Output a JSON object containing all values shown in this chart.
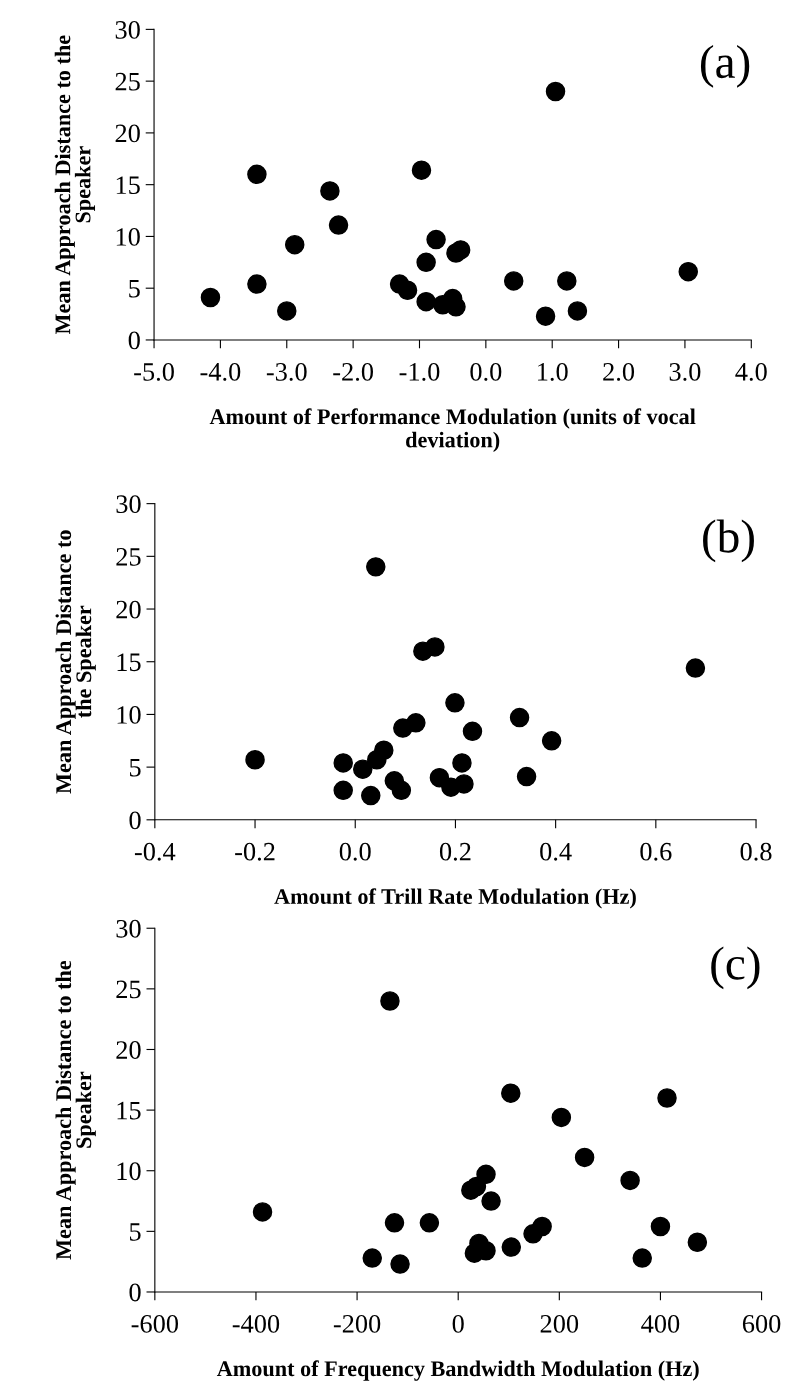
{
  "chart_data": [
    {
      "type": "scatter",
      "xlabel": "Amount of Performance Modulation (units of vocal\ndeviation)",
      "ylabel": "Mean Approach Distance to the\nSpeaker",
      "annotations": [
        "(a)"
      ],
      "marker": "circle",
      "color": "#000000",
      "x": [
        -4.15,
        -3.45,
        -3.45,
        -3.0,
        -2.88,
        -2.35,
        -2.22,
        -1.3,
        -1.18,
        -0.97,
        -0.9,
        -0.9,
        -0.75,
        -0.65,
        -0.5,
        -0.45,
        -0.45,
        -0.38,
        0.42,
        0.9,
        1.05,
        1.22,
        1.38,
        3.05
      ],
      "values": [
        4.1,
        16.0,
        5.4,
        2.8,
        9.2,
        14.4,
        11.1,
        5.4,
        4.8,
        16.4,
        7.5,
        3.7,
        9.7,
        3.4,
        4.0,
        3.2,
        8.4,
        8.7,
        5.7,
        2.3,
        24.0,
        5.7,
        2.8,
        6.6
      ],
      "xlim": [
        -5,
        4
      ],
      "ylim": [
        0,
        30
      ],
      "xticks": [
        {
          "value": -5,
          "label": "-5.0"
        },
        {
          "value": -4,
          "label": "-4.0"
        },
        {
          "value": -3,
          "label": "-3.0"
        },
        {
          "value": -2,
          "label": "-2.0"
        },
        {
          "value": -1,
          "label": "-1.0"
        },
        {
          "value": 0,
          "label": "0.0"
        },
        {
          "value": 1,
          "label": "1.0"
        },
        {
          "value": 2,
          "label": "2.0"
        },
        {
          "value": 3,
          "label": "3.0"
        },
        {
          "value": 4,
          "label": "4.0"
        }
      ],
      "yticks": [
        0,
        5,
        10,
        15,
        20,
        25,
        30
      ]
    },
    {
      "type": "scatter",
      "xlabel": "Amount of Trill Rate Modulation (Hz)",
      "ylabel": "Mean Approach Distance to\nthe Speaker",
      "annotations": [
        "(b)"
      ],
      "marker": "circle",
      "color": "#000000",
      "x": [
        -0.2,
        -0.024,
        -0.024,
        0.015,
        0.031,
        0.041,
        0.043,
        0.057,
        0.078,
        0.092,
        0.095,
        0.121,
        0.135,
        0.159,
        0.168,
        0.191,
        0.199,
        0.213,
        0.217,
        0.234,
        0.328,
        0.342,
        0.392,
        0.679
      ],
      "values": [
        5.7,
        5.4,
        2.8,
        4.8,
        2.3,
        24.0,
        5.7,
        6.6,
        3.7,
        2.8,
        8.7,
        9.2,
        16.0,
        16.4,
        4.0,
        3.1,
        11.1,
        5.4,
        3.4,
        8.4,
        9.7,
        4.1,
        7.5,
        14.4
      ],
      "xlim": [
        -0.4,
        0.8
      ],
      "ylim": [
        0,
        30
      ],
      "xticks": [
        {
          "value": -0.4,
          "label": "-0.4"
        },
        {
          "value": -0.2,
          "label": "-0.2"
        },
        {
          "value": 0,
          "label": "0.0"
        },
        {
          "value": 0.2,
          "label": "0.2"
        },
        {
          "value": 0.4,
          "label": "0.4"
        },
        {
          "value": 0.6,
          "label": "0.6"
        },
        {
          "value": 0.8,
          "label": "0.8"
        }
      ],
      "yticks": [
        0,
        5,
        10,
        15,
        20,
        25,
        30
      ]
    },
    {
      "type": "scatter",
      "xlabel": "Amount of Frequency Bandwidth Modulation (Hz)",
      "ylabel": "Mean Approach Distance to the\nSpeaker",
      "annotations": [
        "(c)"
      ],
      "marker": "circle",
      "color": "#000000",
      "x": [
        -387,
        -170,
        -135,
        -126,
        -115,
        -57,
        25,
        36,
        32,
        41,
        55,
        55,
        65,
        104,
        105,
        148,
        166,
        204,
        250,
        340,
        364,
        400,
        413,
        473
      ],
      "values": [
        6.6,
        2.8,
        24.0,
        5.7,
        2.3,
        5.7,
        8.4,
        8.7,
        3.2,
        4.0,
        9.7,
        3.4,
        7.5,
        16.4,
        3.7,
        4.8,
        5.4,
        14.4,
        11.1,
        9.2,
        2.8,
        5.4,
        16.0,
        4.1
      ],
      "xlim": [
        -600,
        600
      ],
      "ylim": [
        0,
        30
      ],
      "xticks": [
        -600,
        -400,
        -200,
        0,
        200,
        400,
        600
      ],
      "yticks": [
        0,
        5,
        10,
        15,
        20,
        25,
        30
      ]
    }
  ]
}
